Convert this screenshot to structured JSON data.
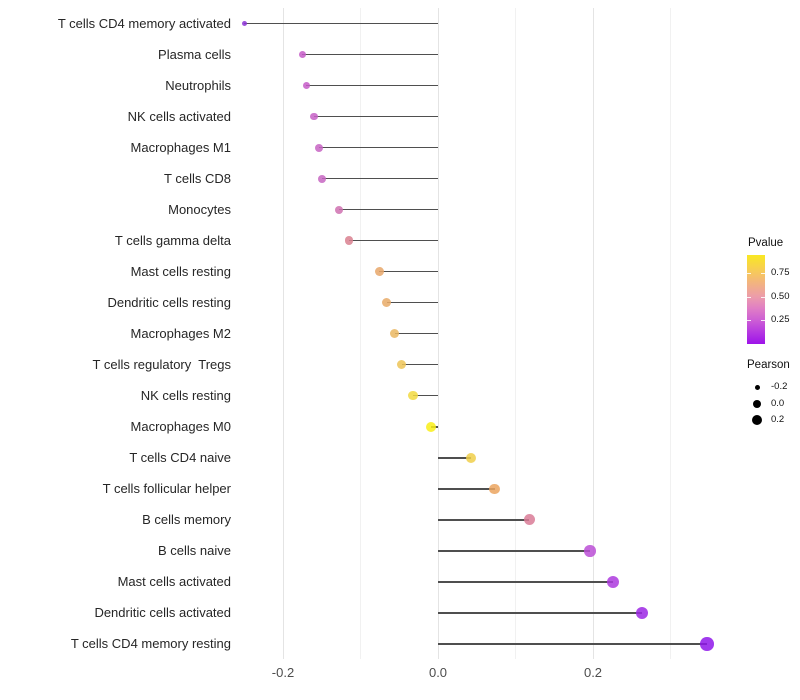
{
  "chart_data": {
    "type": "scatter",
    "subtype": "lollipop",
    "title": "",
    "xlabel": "",
    "ylabel": "",
    "xlim": [
      -0.27,
      0.385
    ],
    "grid": "on",
    "x_grid_values": [
      -0.2,
      -0.1,
      0.0,
      0.1,
      0.2,
      0.3
    ],
    "x_ticks": [
      {
        "label": "-0.2",
        "value": -0.2
      },
      {
        "label": "0.0",
        "value": 0.0
      },
      {
        "label": "0.2",
        "value": 0.2
      }
    ],
    "rows": [
      {
        "label": "T cells CD4 memory activated",
        "pearson": -0.25,
        "pvalue_est": 0.12,
        "color": "#8c33d6",
        "size": 5
      },
      {
        "label": "Plasma cells",
        "pearson": -0.175,
        "pvalue_est": 0.3,
        "color": "#c55cc8",
        "size": 7
      },
      {
        "label": "Neutrophils",
        "pearson": -0.17,
        "pvalue_est": 0.3,
        "color": "#c55cc8",
        "size": 7.5
      },
      {
        "label": "NK cells activated",
        "pearson": -0.16,
        "pvalue_est": 0.31,
        "color": "#c560c6",
        "size": 7.5
      },
      {
        "label": "Macrophages M1",
        "pearson": -0.153,
        "pvalue_est": 0.32,
        "color": "#c764c3",
        "size": 8
      },
      {
        "label": "T cells CD8",
        "pearson": -0.15,
        "pvalue_est": 0.32,
        "color": "#c766c2",
        "size": 8
      },
      {
        "label": "Monocytes",
        "pearson": -0.128,
        "pvalue_est": 0.38,
        "color": "#cf71b0",
        "size": 8
      },
      {
        "label": "T cells gamma delta",
        "pearson": -0.115,
        "pvalue_est": 0.47,
        "color": "#d9808f",
        "size": 8.5
      },
      {
        "label": "Mast cells resting",
        "pearson": -0.076,
        "pvalue_est": 0.62,
        "color": "#e7a76a",
        "size": 9
      },
      {
        "label": "Dendritic cells resting",
        "pearson": -0.066,
        "pvalue_est": 0.63,
        "color": "#e8aa67",
        "size": 9
      },
      {
        "label": "Macrophages M2",
        "pearson": -0.056,
        "pvalue_est": 0.67,
        "color": "#eab761",
        "size": 9
      },
      {
        "label": "T cells regulatory  Tregs",
        "pearson": -0.047,
        "pvalue_est": 0.71,
        "color": "#edc457",
        "size": 9.5
      },
      {
        "label": "NK cells resting",
        "pearson": -0.032,
        "pvalue_est": 0.79,
        "color": "#f2d941",
        "size": 9.5
      },
      {
        "label": "Macrophages M0",
        "pearson": -0.009,
        "pvalue_est": 0.93,
        "color": "#f9ee18",
        "size": 10
      },
      {
        "label": "T cells CD4 naive",
        "pearson": 0.042,
        "pvalue_est": 0.74,
        "color": "#f0cf4a",
        "size": 10
      },
      {
        "label": "T cells follicular helper",
        "pearson": 0.073,
        "pvalue_est": 0.62,
        "color": "#eba55f",
        "size": 10.5
      },
      {
        "label": "B cells memory",
        "pearson": 0.118,
        "pvalue_est": 0.47,
        "color": "#d97b96",
        "size": 11
      },
      {
        "label": "B cells naive",
        "pearson": 0.196,
        "pvalue_est": 0.27,
        "color": "#bb4fd6",
        "size": 11.5
      },
      {
        "label": "Mast cells activated",
        "pearson": 0.226,
        "pvalue_est": 0.21,
        "color": "#ad39de",
        "size": 12
      },
      {
        "label": "Dendritic cells activated",
        "pearson": 0.263,
        "pvalue_est": 0.15,
        "color": "#9c27e4",
        "size": 12.5
      },
      {
        "label": "T cells CD4 memory resting",
        "pearson": 0.347,
        "pvalue_est": 0.05,
        "color": "#8f17ea",
        "size": 13.5
      }
    ],
    "legend_pvalue": {
      "title": "Pvalue",
      "ticks": [
        {
          "label": "0.75",
          "offset": 18
        },
        {
          "label": "0.50",
          "offset": 42
        },
        {
          "label": "0.25",
          "offset": 65
        }
      ],
      "gradient": [
        {
          "color": "#f9e822",
          "pos": 0
        },
        {
          "color": "#f7c95b",
          "pos": 19
        },
        {
          "color": "#f2b184",
          "pos": 33
        },
        {
          "color": "#ec9cab",
          "pos": 47
        },
        {
          "color": "#e07ec5",
          "pos": 60
        },
        {
          "color": "#cd5fd4",
          "pos": 73
        },
        {
          "color": "#b63ae0",
          "pos": 86
        },
        {
          "color": "#9d13e9",
          "pos": 100
        }
      ]
    },
    "legend_pearson": {
      "title": "Pearson",
      "items": [
        {
          "label": "-0.2",
          "diameter": 5
        },
        {
          "label": "0.0",
          "diameter": 8
        },
        {
          "label": "0.2",
          "diameter": 10.5
        }
      ]
    },
    "layout_hints": {
      "legend_position": "right",
      "stem_color": "#4f4f4f",
      "major_grid_color": "#e4e4e4",
      "minor_grid_color": "#f1f1f1",
      "axis_text_color": "#262626"
    }
  }
}
